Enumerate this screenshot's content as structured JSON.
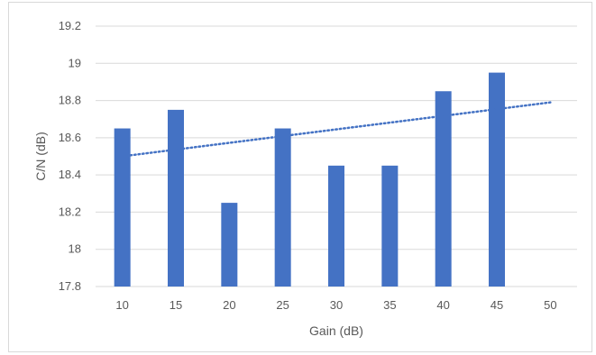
{
  "chart_data": {
    "type": "bar",
    "categories": [
      "10",
      "15",
      "20",
      "25",
      "30",
      "35",
      "40",
      "45",
      "50"
    ],
    "values": [
      18.65,
      18.75,
      18.25,
      18.65,
      18.45,
      18.45,
      18.85,
      18.95,
      null
    ],
    "xlabel": "Gain (dB)",
    "ylabel": "C/N (dB)",
    "ylim": [
      17.8,
      19.2
    ],
    "yticks": [
      "17.8",
      "18",
      "18.2",
      "18.4",
      "18.6",
      "18.8",
      "19",
      "19.2"
    ],
    "trendline": {
      "type": "linear",
      "style": "dotted",
      "start": 18.5,
      "end": 18.79
    },
    "grid": true,
    "legend": "none",
    "colors": {
      "bar": "#4472c4",
      "trendline": "#4472c4",
      "grid": "#d9d9d9",
      "text": "#595959"
    }
  }
}
